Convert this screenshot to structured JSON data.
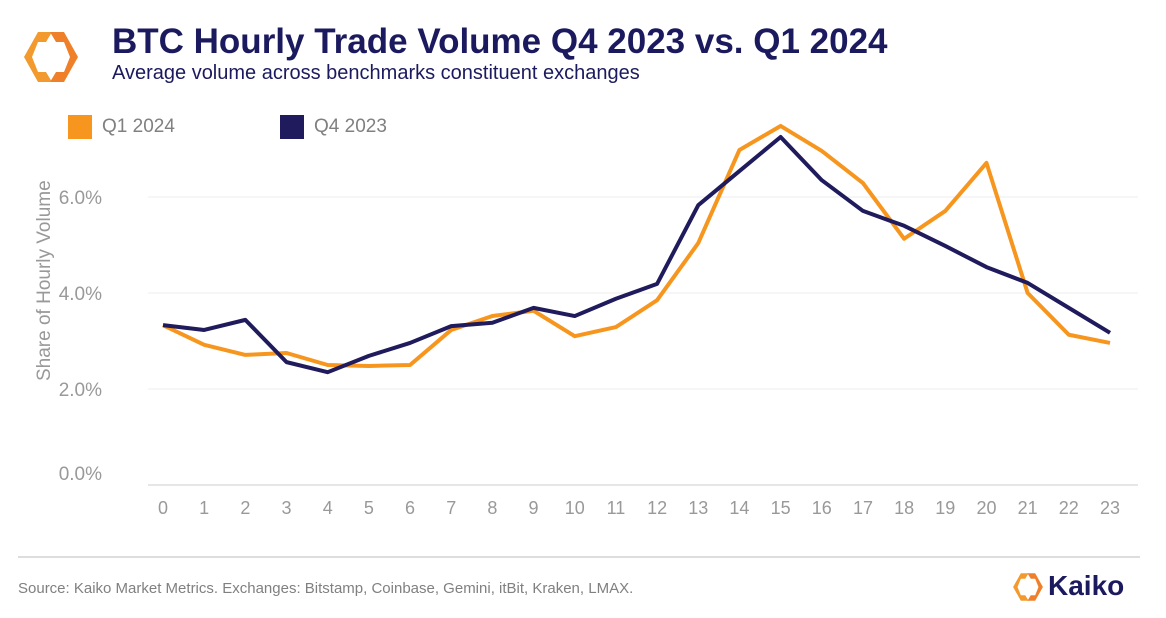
{
  "header": {
    "title": "BTC Hourly Trade Volume Q4 2023 vs. Q1 2024",
    "subtitle": "Average volume across benchmarks constituent exchanges"
  },
  "footer": {
    "source": "Source: Kaiko Market Metrics. Exchanges: Bitstamp, Coinbase, Gemini, itBit, Kraken, LMAX.",
    "brand": "Kaiko"
  },
  "chart_data": {
    "type": "line",
    "title": "BTC Hourly Trade Volume Q4 2023 vs. Q1 2024",
    "xlabel": "",
    "ylabel": "Share of Hourly Volume",
    "x": [
      0,
      1,
      2,
      3,
      4,
      5,
      6,
      7,
      8,
      9,
      10,
      11,
      12,
      13,
      14,
      15,
      16,
      17,
      18,
      19,
      20,
      21,
      22,
      23
    ],
    "ylim": [
      0,
      8
    ],
    "yticks": [
      {
        "v": 0,
        "label": "0.0%"
      },
      {
        "v": 2,
        "label": "2.0%"
      },
      {
        "v": 4,
        "label": "4.0%"
      },
      {
        "v": 6,
        "label": "6.0%"
      }
    ],
    "grid": true,
    "legend": "top-left",
    "series": [
      {
        "name": "Q1 2024",
        "color": "#f7961e",
        "values": [
          3.33,
          2.92,
          2.71,
          2.75,
          2.5,
          2.48,
          2.5,
          3.23,
          3.52,
          3.63,
          3.1,
          3.29,
          3.85,
          5.04,
          6.98,
          7.48,
          6.96,
          6.29,
          5.13,
          5.71,
          6.71,
          4.0,
          3.13,
          2.96
        ]
      },
      {
        "name": "Q4 2023",
        "color": "#1f1b5c",
        "values": [
          3.33,
          3.23,
          3.44,
          2.56,
          2.35,
          2.69,
          2.96,
          3.31,
          3.38,
          3.69,
          3.52,
          3.88,
          4.19,
          5.83,
          6.54,
          7.25,
          6.35,
          5.71,
          5.4,
          4.98,
          4.54,
          4.21,
          3.69,
          3.17
        ]
      }
    ]
  }
}
